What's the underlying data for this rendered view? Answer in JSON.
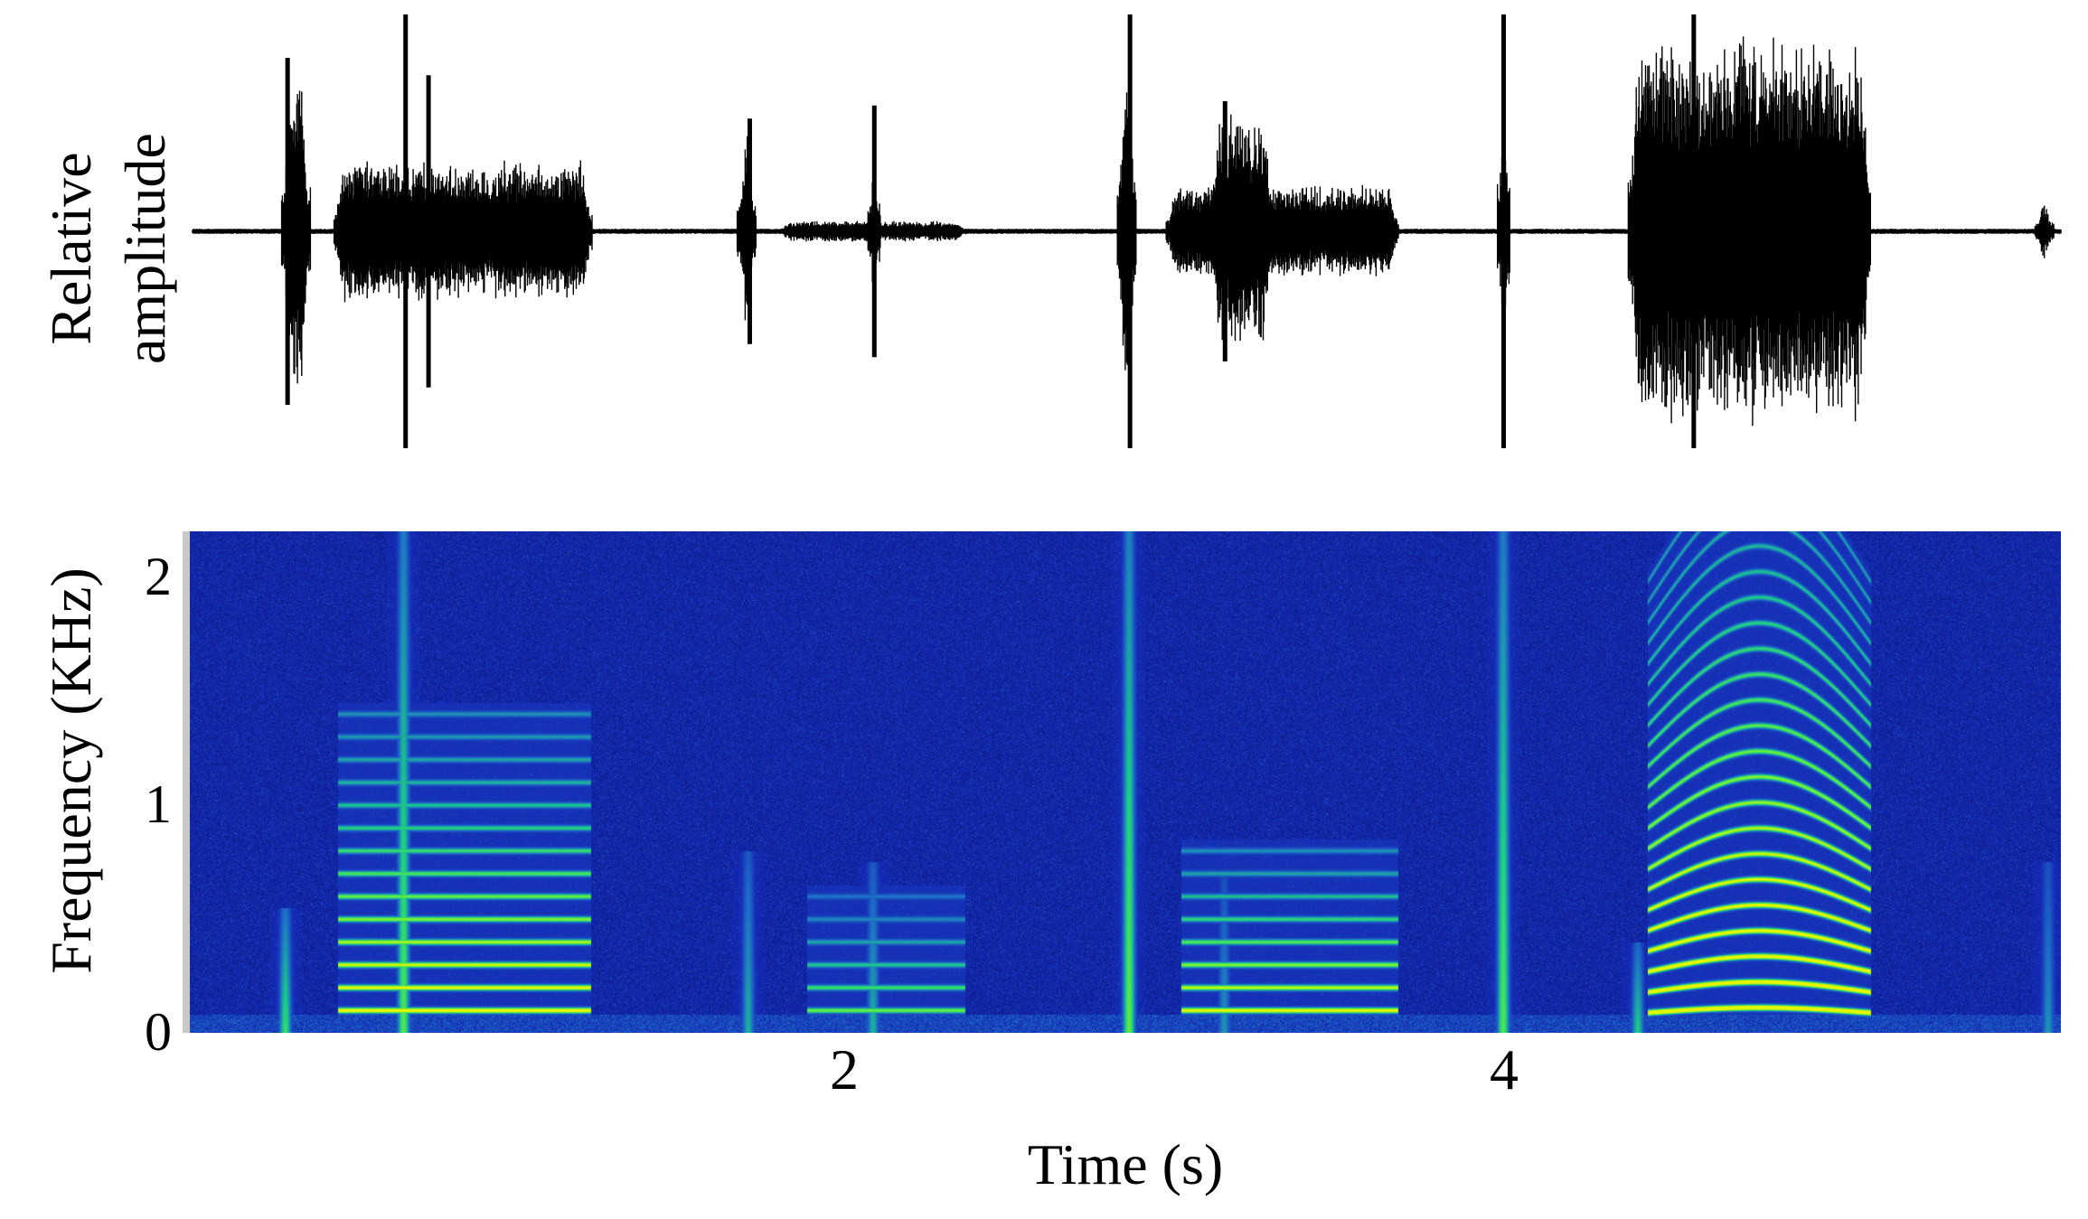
{
  "chart_data": [
    {
      "type": "line",
      "panel": "waveform",
      "ylabel_lines": [
        "Relative",
        "amplitude"
      ],
      "xlim": [
        0,
        5.7
      ],
      "ylim": [
        -1,
        1
      ],
      "grid": false,
      "legend": "none",
      "line_color": "#000000",
      "bursts": [
        {
          "start": 0.27,
          "end": 0.36,
          "amp": 0.78
        },
        {
          "start": 0.43,
          "end": 1.22,
          "amp": 0.33
        },
        {
          "start": 1.66,
          "end": 1.72,
          "amp": 0.5
        },
        {
          "start": 1.79,
          "end": 2.36,
          "amp": 0.05
        },
        {
          "start": 2.06,
          "end": 2.1,
          "amp": 0.55
        },
        {
          "start": 2.82,
          "end": 2.88,
          "amp": 0.95
        },
        {
          "start": 2.97,
          "end": 3.68,
          "amp": 0.22
        },
        {
          "start": 3.1,
          "end": 3.3,
          "amp": 0.55
        },
        {
          "start": 3.98,
          "end": 4.02,
          "amp": 0.95
        },
        {
          "start": 4.38,
          "end": 5.12,
          "amp": 0.92
        },
        {
          "start": 5.62,
          "end": 5.68,
          "amp": 0.15
        }
      ],
      "spikes": [
        {
          "t": 0.29,
          "amp": 0.8
        },
        {
          "t": 0.65,
          "amp": 1.0
        },
        {
          "t": 0.72,
          "amp": 0.72
        },
        {
          "t": 1.7,
          "amp": 0.52
        },
        {
          "t": 2.08,
          "amp": 0.58
        },
        {
          "t": 2.86,
          "amp": 1.0
        },
        {
          "t": 3.15,
          "amp": 0.6
        },
        {
          "t": 4.0,
          "amp": 1.0
        },
        {
          "t": 4.58,
          "amp": 1.0
        }
      ]
    },
    {
      "type": "heatmap",
      "panel": "spectrogram",
      "xlabel": "Time (s)",
      "ylabel": "Frequency (KHz)",
      "xlim": [
        0,
        5.7
      ],
      "ylim": [
        0,
        2.2
      ],
      "xticks": [
        "2",
        "4"
      ],
      "yticks": [
        "0",
        "1",
        "2"
      ],
      "grid": false,
      "legend": "none",
      "colormap": [
        "#000010",
        "#0a1878",
        "#1428b4",
        "#1e6ec8",
        "#19c88c",
        "#64f03c",
        "#e6f500"
      ],
      "harmonic_stacks": [
        {
          "start": 0.45,
          "end": 1.22,
          "f0": 0.1,
          "n": 14,
          "strength": 0.85
        },
        {
          "start": 1.88,
          "end": 2.36,
          "f0": 0.1,
          "n": 6,
          "strength": 0.55
        },
        {
          "start": 3.02,
          "end": 3.68,
          "f0": 0.1,
          "n": 8,
          "strength": 0.8
        },
        {
          "start": 4.44,
          "end": 5.12,
          "f0": 0.09,
          "n": 22,
          "strength": 1.0
        }
      ],
      "broadband_events": [
        {
          "t": 0.29,
          "fmax": 0.55,
          "strength": 0.8
        },
        {
          "t": 0.65,
          "fmax": 2.2,
          "strength": 0.9
        },
        {
          "t": 1.7,
          "fmax": 0.8,
          "strength": 0.6
        },
        {
          "t": 2.08,
          "fmax": 0.75,
          "strength": 0.6
        },
        {
          "t": 2.86,
          "fmax": 2.2,
          "strength": 0.95
        },
        {
          "t": 3.15,
          "fmax": 0.7,
          "strength": 0.5
        },
        {
          "t": 4.0,
          "fmax": 2.2,
          "strength": 0.9
        },
        {
          "t": 4.41,
          "fmax": 0.4,
          "strength": 0.7
        },
        {
          "t": 5.66,
          "fmax": 0.75,
          "strength": 0.5
        }
      ]
    }
  ]
}
